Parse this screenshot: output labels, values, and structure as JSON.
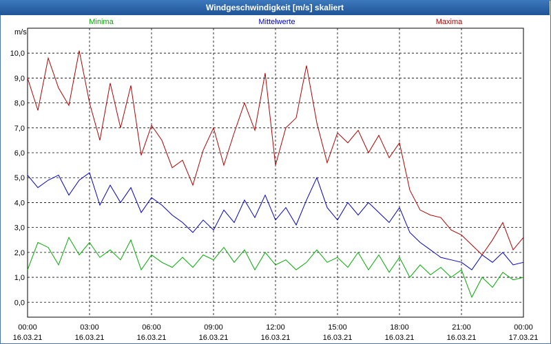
{
  "window": {
    "title": "Windgeschwindigkeit [m/s] skaliert"
  },
  "chart_data": {
    "type": "line",
    "title": "Windgeschwindigkeit [m/s] skaliert",
    "ylabel": "m/s",
    "xlabel": "",
    "ylim": [
      -0.6,
      11.0
    ],
    "xlim": [
      0,
      24
    ],
    "grid": true,
    "yticks": [
      0,
      1,
      2,
      3,
      4,
      5,
      6,
      7,
      8,
      9,
      10
    ],
    "ytick_labels": [
      "0,0",
      "1,0",
      "2,0",
      "3,0",
      "4,0",
      "5,0",
      "6,0",
      "7,0",
      "8,0",
      "9,0",
      "10,0"
    ],
    "xticks": [
      {
        "time": "00:00",
        "date": "16.03.21"
      },
      {
        "time": "03:00",
        "date": "16.03.21"
      },
      {
        "time": "06:00",
        "date": "16.03.21"
      },
      {
        "time": "09:00",
        "date": "16.03.21"
      },
      {
        "time": "12:00",
        "date": "16.03.21"
      },
      {
        "time": "15:00",
        "date": "16.03.21"
      },
      {
        "time": "18:00",
        "date": "16.03.21"
      },
      {
        "time": "21:00",
        "date": "16.03.21"
      },
      {
        "time": "00:00",
        "date": "17.03.21"
      }
    ],
    "series": [
      {
        "name": "Minima",
        "color": "#00aa00",
        "x": [
          0,
          0.5,
          1,
          1.5,
          2,
          2.5,
          3,
          3.5,
          4,
          4.5,
          5,
          5.5,
          6,
          6.5,
          7,
          7.5,
          8,
          8.5,
          9,
          9.5,
          10,
          10.5,
          11,
          11.5,
          12,
          12.5,
          13,
          13.5,
          14,
          14.5,
          15,
          15.5,
          16,
          16.5,
          17,
          17.5,
          18,
          18.5,
          19,
          19.5,
          20,
          20.5,
          21,
          21.5,
          22,
          22.5,
          23,
          23.5,
          24
        ],
        "values": [
          1.3,
          2.4,
          2.2,
          1.5,
          2.6,
          1.9,
          2.4,
          1.8,
          2.1,
          1.7,
          2.5,
          1.3,
          1.9,
          1.6,
          1.4,
          1.8,
          1.4,
          1.9,
          1.7,
          2.2,
          1.6,
          2.1,
          1.3,
          2.0,
          1.5,
          1.7,
          1.3,
          1.6,
          2.1,
          1.6,
          1.8,
          1.4,
          2.0,
          1.3,
          1.9,
          1.2,
          1.8,
          1.0,
          1.5,
          1.1,
          1.4,
          1.0,
          1.3,
          0.2,
          1.0,
          0.6,
          1.2,
          0.9,
          1.0
        ]
      },
      {
        "name": "Mittelwerte",
        "color": "#0000c8",
        "x": [
          0,
          0.5,
          1,
          1.5,
          2,
          2.5,
          3,
          3.5,
          4,
          4.5,
          5,
          5.5,
          6,
          6.5,
          7,
          7.5,
          8,
          8.5,
          9,
          9.5,
          10,
          10.5,
          11,
          11.5,
          12,
          12.5,
          13,
          13.5,
          14,
          14.5,
          15,
          15.5,
          16,
          16.5,
          17,
          17.5,
          18,
          18.5,
          19,
          19.5,
          20,
          20.5,
          21,
          21.5,
          22,
          22.5,
          23,
          23.5,
          24
        ],
        "values": [
          5.1,
          4.6,
          4.9,
          5.1,
          4.3,
          4.9,
          5.2,
          3.9,
          4.7,
          4.0,
          4.6,
          3.6,
          4.2,
          3.9,
          3.5,
          3.2,
          2.8,
          3.3,
          2.9,
          3.7,
          3.2,
          4.1,
          3.4,
          4.3,
          3.3,
          3.8,
          3.1,
          4.1,
          5.0,
          3.8,
          3.3,
          4.0,
          3.5,
          4.0,
          3.6,
          3.2,
          3.8,
          2.8,
          2.4,
          2.1,
          1.8,
          1.7,
          1.6,
          1.3,
          1.9,
          1.6,
          2.0,
          1.5,
          1.6
        ]
      },
      {
        "name": "Maxima",
        "color": "#b40000",
        "x": [
          0,
          0.5,
          1,
          1.5,
          2,
          2.5,
          3,
          3.5,
          4,
          4.5,
          5,
          5.5,
          6,
          6.5,
          7,
          7.5,
          8,
          8.5,
          9,
          9.5,
          10,
          10.5,
          11,
          11.5,
          12,
          12.5,
          13,
          13.5,
          14,
          14.5,
          15,
          15.5,
          16,
          16.5,
          17,
          17.5,
          18,
          18.5,
          19,
          19.5,
          20,
          20.5,
          21,
          21.5,
          22,
          22.5,
          23,
          23.5,
          24
        ],
        "values": [
          9.0,
          7.7,
          9.8,
          8.6,
          7.9,
          10.1,
          8.0,
          6.5,
          8.8,
          7.0,
          8.7,
          5.9,
          7.1,
          6.5,
          5.4,
          5.7,
          4.7,
          6.1,
          7.0,
          5.5,
          6.8,
          8.0,
          6.9,
          9.2,
          5.5,
          7.0,
          7.4,
          9.5,
          7.2,
          5.6,
          6.8,
          6.4,
          6.9,
          6.0,
          6.7,
          5.8,
          6.4,
          4.5,
          3.7,
          3.5,
          3.4,
          2.9,
          2.7,
          2.3,
          1.9,
          2.5,
          3.2,
          2.1,
          2.6
        ]
      }
    ]
  }
}
